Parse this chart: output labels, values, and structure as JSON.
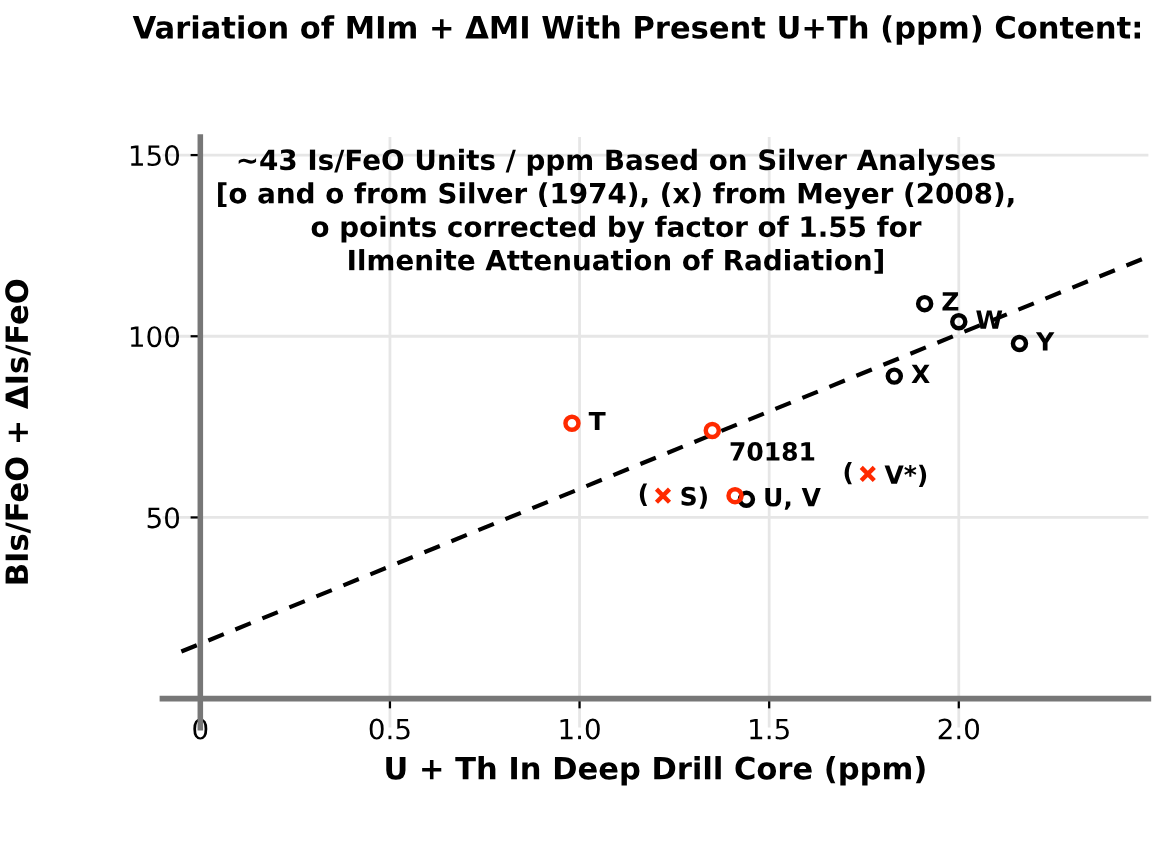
{
  "chart_data": {
    "type": "scatter",
    "title": "Variation of MIm + ΔMI With Present U+Th (ppm) Content:",
    "subtitle": "~43 Is/FeO Units / ppm Based on Silver Analyses\n[o and o from Silver (1974), (x) from Meyer (2008),\no points corrected by factor of 1.55 for\nIlmenite Attenuation of Radiation]",
    "xlabel": "U + Th In Deep Drill Core (ppm)",
    "ylabel": "BIs/FeO + ΔIs/FeO",
    "xlim": [
      -0.1,
      2.5
    ],
    "ylim": [
      -8,
      155
    ],
    "xticks": [
      0,
      0.5,
      {
        "value": 1.0,
        "label": "1.0"
      },
      1.5,
      {
        "value": 2.0,
        "label": "2.0"
      }
    ],
    "yticks": [
      50,
      100,
      150
    ],
    "grid": true,
    "series": [
      {
        "color": "#000000",
        "marker": "circle",
        "x": [
          1.44,
          1.83,
          1.91,
          2.0,
          2.16
        ],
        "values": [
          55,
          89,
          109,
          104,
          98
        ]
      },
      {
        "color": "#ff2a00",
        "marker": "circle",
        "x": [
          0.98,
          1.35,
          1.41
        ],
        "values": [
          76,
          74,
          56
        ]
      },
      {
        "color": "#ff2a00",
        "marker": "cross",
        "x": [
          1.22,
          1.76
        ],
        "values": [
          56,
          62
        ]
      },
      {
        "type": "line",
        "color": "#000000",
        "line_style": "dashed",
        "x": [
          -0.05,
          2.5
        ],
        "values": [
          13,
          122
        ]
      }
    ],
    "annotations": [
      {
        "text": "T",
        "x": 0.98,
        "y": 76
      },
      {
        "text": "70181",
        "x": 1.35,
        "y": 74
      },
      {
        "text": "(",
        "x": 1.22,
        "y": 56
      },
      {
        "text": "S)",
        "x": 1.22,
        "y": 56
      },
      {
        "text": "U, V",
        "x": 1.44,
        "y": 55
      },
      {
        "text": "(",
        "x": 1.76,
        "y": 62
      },
      {
        "text": "V*)",
        "x": 1.76,
        "y": 62
      },
      {
        "text": "X",
        "x": 1.83,
        "y": 89
      },
      {
        "text": "Z",
        "x": 1.91,
        "y": 109
      },
      {
        "text": "W",
        "x": 2.0,
        "y": 104
      },
      {
        "text": "Y",
        "x": 2.16,
        "y": 98
      }
    ]
  }
}
